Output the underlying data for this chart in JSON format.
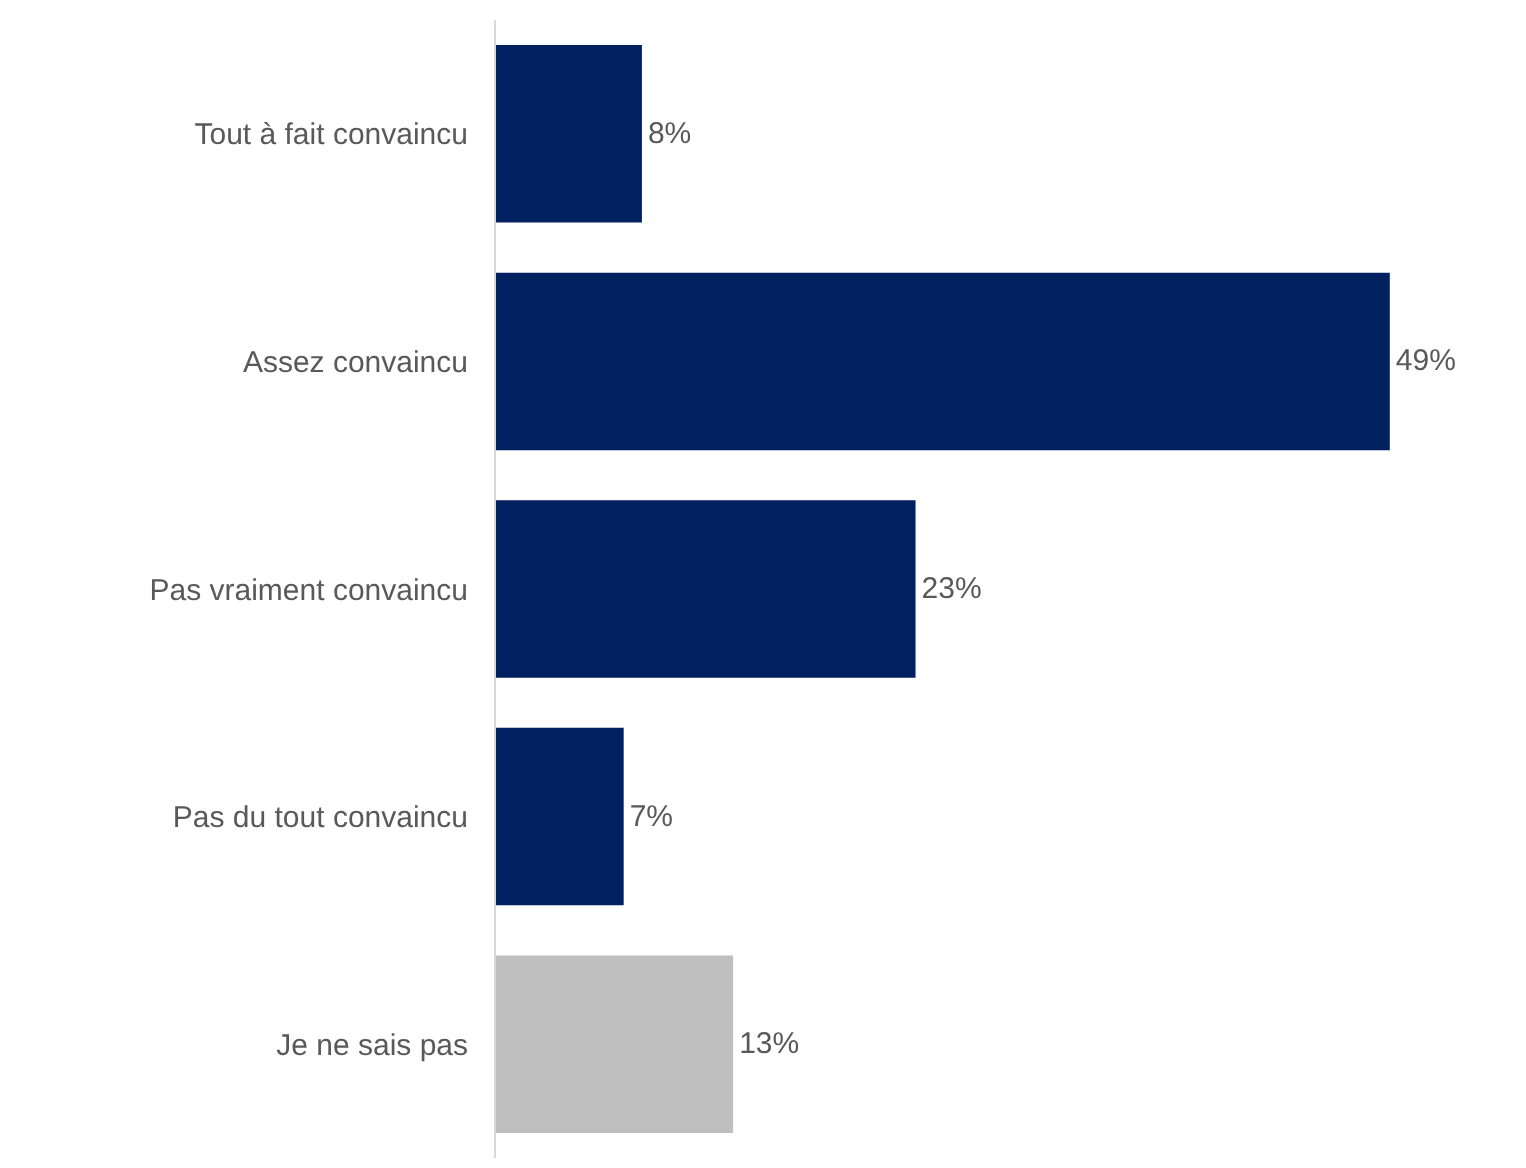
{
  "chart_data": {
    "type": "bar",
    "orientation": "horizontal",
    "categories": [
      "Tout à fait convaincu",
      "Assez convaincu",
      "Pas vraiment convaincu",
      "Pas du tout convaincu",
      "Je ne sais pas"
    ],
    "values": [
      8,
      49,
      23,
      7,
      13
    ],
    "value_labels": [
      "8%",
      "49%",
      "23%",
      "7%",
      "13%"
    ],
    "colors": [
      "#002060",
      "#002060",
      "#002060",
      "#002060",
      "#bfbfbf"
    ]
  }
}
